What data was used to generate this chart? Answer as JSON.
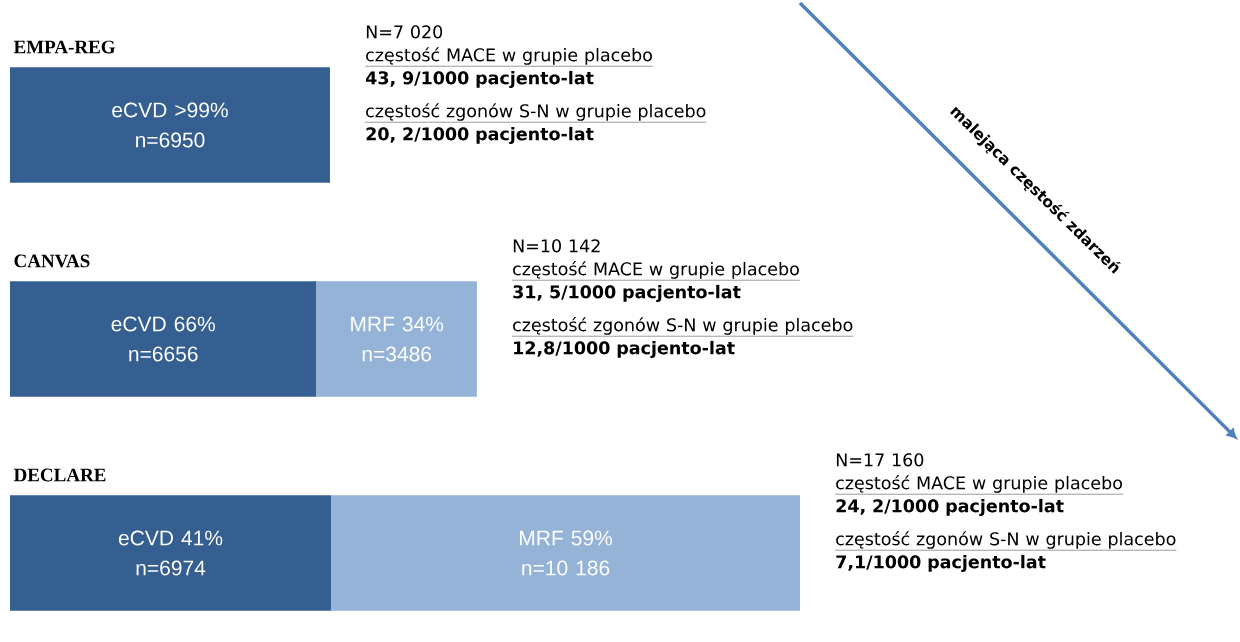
{
  "chart_data": {
    "type": "bar",
    "orientation": "horizontal",
    "stacked": true,
    "categories": [
      "EMPA-REG",
      "CANVAS",
      "DECLARE"
    ],
    "series": [
      {
        "color": "#355f91",
        "values": [
          6950,
          6656,
          6974
        ],
        "value_labels": [
          "eCVD >99% n=6950",
          "eCVD 66% n=6656",
          "eCVD 41% n=6974"
        ]
      },
      {
        "color": "#95b3d7",
        "values": [
          null,
          3486,
          10186
        ],
        "value_labels": [
          null,
          "MRF 34% n=3486",
          "MRF 59% n=10 186"
        ]
      }
    ],
    "annotations": [
      "N=7 020",
      "częstość MACE w grupie placebo",
      "43, 9/1000 pacjento-lat",
      "częstość zgonów S-N w grupie placebo",
      "20, 2/1000 pacjento-lat",
      "N=10 142",
      "częstość MACE w grupie placebo",
      "31, 5/1000 pacjento-lat",
      "częstość zgonów S-N w grupie placebo",
      "12,8/1000 pacjento-lat",
      "N=17 160",
      "częstość MACE w grupie placebo",
      "24, 2/1000 pacjento-lat",
      "częstość zgonów S-N w grupie placebo",
      "7,1/1000 pacjento-lat",
      "malejąca częstość zdarzeń"
    ]
  }
}
